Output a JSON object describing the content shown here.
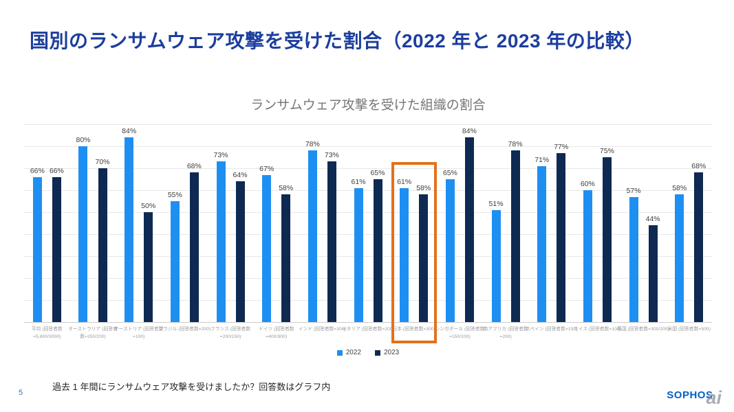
{
  "slide": {
    "title": "国別のランサムウェア攻撃を受けた割合（2022 年と 2023 年の比較）",
    "footer": "過去 1 年間にランサムウェア攻撃を受けましたか？回答数はグラフ内",
    "page_number": "5",
    "logo": {
      "brand": "SOPHOS",
      "watermark": "ai"
    }
  },
  "chart_data": {
    "type": "bar",
    "title": "ランサムウェア攻撃を受けた組織の割合",
    "value_suffix": "%",
    "categories": [
      "平均 (回答者数=5,600/3000)",
      "オーストラリア (回答者数=250/200)",
      "オーストリア (回答者数=100)",
      "ブラジル (回答者数=200)",
      "フランス (回答者数=200/150)",
      "ドイツ (回答者数=400/300)",
      "インド (回答者数=300)",
      "イタリア (回答者数=200)",
      "日本 (回答者数=300)",
      "シンガポール (回答者数=150/100)",
      "南アフリカ (回答者数=200)",
      "スペイン (回答者数=150)",
      "スイス (回答者数=100)",
      "英国 (回答者数=300/200)",
      "米国 (回答者数=500)"
    ],
    "series": [
      {
        "name": "2022",
        "color": "#1E8FF2",
        "values": [
          66,
          80,
          84,
          55,
          73,
          67,
          78,
          61,
          61,
          65,
          51,
          71,
          60,
          57,
          58
        ]
      },
      {
        "name": "2023",
        "color": "#0E2A52",
        "values": [
          66,
          70,
          50,
          68,
          64,
          58,
          73,
          65,
          58,
          84,
          78,
          77,
          75,
          44,
          68
        ]
      }
    ],
    "ylim": [
      0,
      90
    ],
    "grid_interval": 10,
    "grid": true,
    "legend_position": "bottom",
    "highlight": {
      "index": 8,
      "label": "日本",
      "color": "#E2711B"
    }
  },
  "colors": {
    "slide_title": "#1C3E9E",
    "chart_title": "#767676",
    "grid": "#E7E7E7",
    "axis": "#CCCCCC",
    "value_label": "#3D3D3D",
    "x_label": "#9B9B9B",
    "page_number": "#2E74B5",
    "sophos_blue": "#0060C8",
    "watermark_gray": "#A9ADB2"
  }
}
